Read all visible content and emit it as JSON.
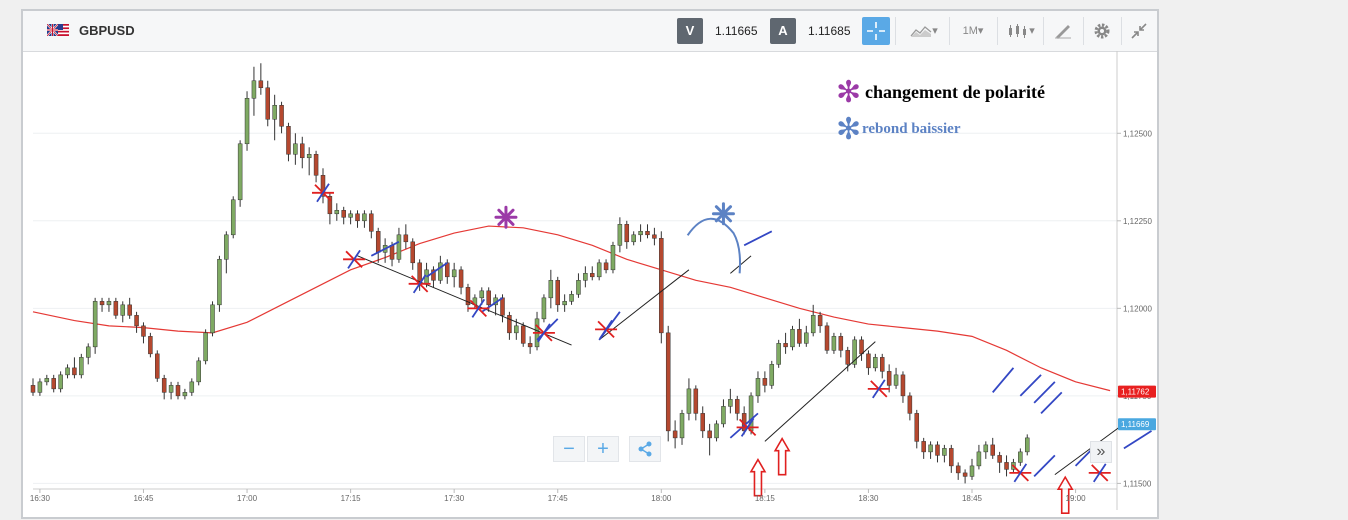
{
  "toolbar": {
    "symbol": "GBPUSD",
    "sell_label": "V",
    "sell_price": "1.11665",
    "buy_label": "A",
    "buy_price": "1.11685",
    "timeframe": "1M",
    "dropdown_caret": "▾",
    "zoom_out": "−",
    "zoom_in": "+",
    "scroll_glyph": "»"
  },
  "legend": {
    "items": [
      {
        "symbol": "✻",
        "label": "changement de polarité",
        "color": "#9b3aa7"
      },
      {
        "symbol": "✻",
        "label": "rebond baissier",
        "color": "#5c82c4"
      }
    ]
  },
  "chart_data": {
    "type": "candlestick",
    "x_ticks": [
      "16:30",
      "16:45",
      "17:00",
      "17:15",
      "17:30",
      "17:45",
      "18:00",
      "18:15",
      "18:30",
      "18:45",
      "19:00"
    ],
    "x_tick_minutes": [
      990,
      1005,
      1020,
      1035,
      1050,
      1065,
      1080,
      1095,
      1110,
      1125,
      1140
    ],
    "x_range_minutes": [
      989,
      1140
    ],
    "y_ticks": [
      "1,12500",
      "1,12250",
      "1,12000",
      "1,11750",
      "1,11500"
    ],
    "y_tick_values": [
      1.125,
      1.1225,
      1.12,
      1.1175,
      1.115
    ],
    "ylim": [
      1.11484,
      1.12735
    ],
    "current_ma_tag": {
      "label": "1,11762",
      "value": 1.11762,
      "color": "#e82020"
    },
    "current_price_tag": {
      "label": "1,11669",
      "value": 1.11669,
      "color": "#4aa8e0"
    },
    "up_color": "#7faa63",
    "down_color": "#b5482f",
    "ma_color": "#e53935",
    "candles": [
      [
        1.1178,
        1.118,
        1.1175,
        1.1176
      ],
      [
        1.1176,
        1.118,
        1.1175,
        1.1179
      ],
      [
        1.1179,
        1.1181,
        1.1178,
        1.118
      ],
      [
        1.118,
        1.1181,
        1.1176,
        1.1177
      ],
      [
        1.1177,
        1.1182,
        1.1176,
        1.1181
      ],
      [
        1.1181,
        1.1184,
        1.118,
        1.1183
      ],
      [
        1.1183,
        1.1186,
        1.118,
        1.1181
      ],
      [
        1.1181,
        1.1187,
        1.118,
        1.1186
      ],
      [
        1.1186,
        1.119,
        1.1184,
        1.1189
      ],
      [
        1.1189,
        1.1203,
        1.1187,
        1.1202
      ],
      [
        1.1202,
        1.1203,
        1.1199,
        1.1201
      ],
      [
        1.1201,
        1.1203,
        1.1199,
        1.1202
      ],
      [
        1.1202,
        1.1203,
        1.1197,
        1.1198
      ],
      [
        1.1198,
        1.1202,
        1.1196,
        1.1201
      ],
      [
        1.1201,
        1.1203,
        1.1197,
        1.1198
      ],
      [
        1.1198,
        1.1199,
        1.1193,
        1.1195
      ],
      [
        1.1195,
        1.1196,
        1.119,
        1.1192
      ],
      [
        1.1192,
        1.1193,
        1.1186,
        1.1187
      ],
      [
        1.1187,
        1.1188,
        1.1179,
        1.118
      ],
      [
        1.118,
        1.1181,
        1.1174,
        1.1176
      ],
      [
        1.1176,
        1.1179,
        1.1174,
        1.1178
      ],
      [
        1.1178,
        1.1179,
        1.1174,
        1.1175
      ],
      [
        1.1175,
        1.1177,
        1.1174,
        1.1176
      ],
      [
        1.1176,
        1.118,
        1.1175,
        1.1179
      ],
      [
        1.1179,
        1.1186,
        1.1178,
        1.1185
      ],
      [
        1.1185,
        1.1194,
        1.1184,
        1.1193
      ],
      [
        1.1193,
        1.1202,
        1.1192,
        1.1201
      ],
      [
        1.1201,
        1.1215,
        1.1199,
        1.1214
      ],
      [
        1.1214,
        1.1222,
        1.121,
        1.1221
      ],
      [
        1.1221,
        1.1232,
        1.122,
        1.1231
      ],
      [
        1.1231,
        1.1248,
        1.1229,
        1.1247
      ],
      [
        1.1247,
        1.1262,
        1.1245,
        1.126
      ],
      [
        1.126,
        1.1269,
        1.1255,
        1.1265
      ],
      [
        1.1265,
        1.127,
        1.1261,
        1.1263
      ],
      [
        1.1263,
        1.1265,
        1.1252,
        1.1254
      ],
      [
        1.1254,
        1.1261,
        1.1248,
        1.1258
      ],
      [
        1.1258,
        1.1259,
        1.125,
        1.1252
      ],
      [
        1.1252,
        1.1253,
        1.1242,
        1.1244
      ],
      [
        1.1244,
        1.125,
        1.1241,
        1.1247
      ],
      [
        1.1247,
        1.1249,
        1.124,
        1.1243
      ],
      [
        1.1243,
        1.1246,
        1.1238,
        1.1244
      ],
      [
        1.1244,
        1.1245,
        1.1236,
        1.1238
      ],
      [
        1.1238,
        1.124,
        1.123,
        1.1232
      ],
      [
        1.1232,
        1.1233,
        1.1224,
        1.1227
      ],
      [
        1.1227,
        1.123,
        1.1225,
        1.1228
      ],
      [
        1.1228,
        1.1229,
        1.1224,
        1.1226
      ],
      [
        1.1226,
        1.1228,
        1.1224,
        1.1227
      ],
      [
        1.1227,
        1.1228,
        1.1223,
        1.1225
      ],
      [
        1.1225,
        1.1228,
        1.1223,
        1.1227
      ],
      [
        1.1227,
        1.1228,
        1.122,
        1.1222
      ],
      [
        1.1222,
        1.1223,
        1.1213,
        1.1216
      ],
      [
        1.1216,
        1.122,
        1.1213,
        1.1218
      ],
      [
        1.1218,
        1.1219,
        1.1212,
        1.1214
      ],
      [
        1.1214,
        1.1223,
        1.1213,
        1.1221
      ],
      [
        1.1221,
        1.1224,
        1.1217,
        1.1219
      ],
      [
        1.1219,
        1.122,
        1.1211,
        1.1213
      ],
      [
        1.1213,
        1.1214,
        1.1205,
        1.1207
      ],
      [
        1.1207,
        1.1213,
        1.1206,
        1.1211
      ],
      [
        1.1211,
        1.1212,
        1.1206,
        1.1208
      ],
      [
        1.1208,
        1.1215,
        1.1207,
        1.1213
      ],
      [
        1.1213,
        1.1214,
        1.1207,
        1.1209
      ],
      [
        1.1209,
        1.1213,
        1.1206,
        1.1211
      ],
      [
        1.1211,
        1.1212,
        1.1204,
        1.1206
      ],
      [
        1.1206,
        1.1207,
        1.1199,
        1.1201
      ],
      [
        1.1201,
        1.1204,
        1.12,
        1.1203
      ],
      [
        1.1203,
        1.1206,
        1.1201,
        1.1205
      ],
      [
        1.1205,
        1.1206,
        1.1199,
        1.1201
      ],
      [
        1.1201,
        1.1204,
        1.1198,
        1.1203
      ],
      [
        1.1203,
        1.1204,
        1.1196,
        1.1198
      ],
      [
        1.1198,
        1.1199,
        1.1191,
        1.1193
      ],
      [
        1.1193,
        1.1197,
        1.1191,
        1.1195
      ],
      [
        1.1195,
        1.1196,
        1.1189,
        1.119
      ],
      [
        1.119,
        1.1192,
        1.1187,
        1.1189
      ],
      [
        1.1189,
        1.1199,
        1.1188,
        1.1197
      ],
      [
        1.1197,
        1.1204,
        1.1196,
        1.1203
      ],
      [
        1.1203,
        1.1211,
        1.12,
        1.1208
      ],
      [
        1.1208,
        1.1209,
        1.1199,
        1.1201
      ],
      [
        1.1201,
        1.1204,
        1.1199,
        1.1202
      ],
      [
        1.1202,
        1.1205,
        1.1201,
        1.1204
      ],
      [
        1.1204,
        1.121,
        1.1203,
        1.1208
      ],
      [
        1.1208,
        1.1212,
        1.1206,
        1.121
      ],
      [
        1.121,
        1.1212,
        1.1208,
        1.1209
      ],
      [
        1.1209,
        1.1214,
        1.1208,
        1.1213
      ],
      [
        1.1213,
        1.1214,
        1.121,
        1.1211
      ],
      [
        1.1211,
        1.1219,
        1.121,
        1.1218
      ],
      [
        1.1218,
        1.1226,
        1.1216,
        1.1224
      ],
      [
        1.1224,
        1.1225,
        1.1217,
        1.1219
      ],
      [
        1.1219,
        1.1222,
        1.1218,
        1.1221
      ],
      [
        1.1221,
        1.1224,
        1.1219,
        1.1222
      ],
      [
        1.1222,
        1.1224,
        1.122,
        1.1221
      ],
      [
        1.1221,
        1.1223,
        1.1218,
        1.122
      ],
      [
        1.122,
        1.1222,
        1.119,
        1.1193
      ],
      [
        1.1193,
        1.1195,
        1.1162,
        1.1165
      ],
      [
        1.1165,
        1.1168,
        1.116,
        1.1163
      ],
      [
        1.1163,
        1.1171,
        1.1161,
        1.117
      ],
      [
        1.117,
        1.118,
        1.1168,
        1.1177
      ],
      [
        1.1177,
        1.1178,
        1.1168,
        1.117
      ],
      [
        1.117,
        1.1172,
        1.1163,
        1.1165
      ],
      [
        1.1165,
        1.1167,
        1.1158,
        1.1163
      ],
      [
        1.1163,
        1.1168,
        1.1162,
        1.1167
      ],
      [
        1.1167,
        1.1174,
        1.1166,
        1.1172
      ],
      [
        1.1172,
        1.1177,
        1.117,
        1.1174
      ],
      [
        1.1174,
        1.1175,
        1.1168,
        1.117
      ],
      [
        1.117,
        1.1172,
        1.1164,
        1.1165
      ],
      [
        1.1165,
        1.1176,
        1.1164,
        1.1175
      ],
      [
        1.1175,
        1.1182,
        1.1173,
        1.118
      ],
      [
        1.118,
        1.1182,
        1.1176,
        1.1178
      ],
      [
        1.1178,
        1.1185,
        1.1177,
        1.1184
      ],
      [
        1.1184,
        1.1191,
        1.1183,
        1.119
      ],
      [
        1.119,
        1.1193,
        1.1187,
        1.1189
      ],
      [
        1.1189,
        1.1195,
        1.1188,
        1.1194
      ],
      [
        1.1194,
        1.1197,
        1.1189,
        1.119
      ],
      [
        1.119,
        1.1195,
        1.1189,
        1.1193
      ],
      [
        1.1193,
        1.1201,
        1.1192,
        1.1198
      ],
      [
        1.1198,
        1.1199,
        1.1193,
        1.1195
      ],
      [
        1.1195,
        1.1196,
        1.1187,
        1.1188
      ],
      [
        1.1188,
        1.1193,
        1.1187,
        1.1192
      ],
      [
        1.1192,
        1.1193,
        1.1186,
        1.1188
      ],
      [
        1.1188,
        1.1189,
        1.1182,
        1.1184
      ],
      [
        1.1184,
        1.1192,
        1.1183,
        1.1191
      ],
      [
        1.1191,
        1.1192,
        1.1185,
        1.1187
      ],
      [
        1.1187,
        1.1188,
        1.1181,
        1.1183
      ],
      [
        1.1183,
        1.1187,
        1.1182,
        1.1186
      ],
      [
        1.1186,
        1.1187,
        1.118,
        1.1182
      ],
      [
        1.1182,
        1.1184,
        1.1176,
        1.1178
      ],
      [
        1.1178,
        1.1183,
        1.1177,
        1.1181
      ],
      [
        1.1181,
        1.1182,
        1.1173,
        1.1175
      ],
      [
        1.1175,
        1.1176,
        1.1168,
        1.117
      ],
      [
        1.117,
        1.1171,
        1.116,
        1.1162
      ],
      [
        1.1162,
        1.1163,
        1.1157,
        1.1159
      ],
      [
        1.1159,
        1.1162,
        1.1157,
        1.1161
      ],
      [
        1.1161,
        1.1162,
        1.1156,
        1.1158
      ],
      [
        1.1158,
        1.1161,
        1.1156,
        1.116
      ],
      [
        1.116,
        1.1161,
        1.1153,
        1.1155
      ],
      [
        1.1155,
        1.1156,
        1.1151,
        1.1153
      ],
      [
        1.1153,
        1.1154,
        1.115,
        1.1152
      ],
      [
        1.1152,
        1.1157,
        1.1151,
        1.1155
      ],
      [
        1.1155,
        1.1161,
        1.1154,
        1.1159
      ],
      [
        1.1159,
        1.1162,
        1.1157,
        1.1161
      ],
      [
        1.1161,
        1.1163,
        1.1157,
        1.1158
      ],
      [
        1.1158,
        1.1159,
        1.1153,
        1.1156
      ],
      [
        1.1156,
        1.1158,
        1.1152,
        1.1154
      ],
      [
        1.1154,
        1.1157,
        1.1153,
        1.1156
      ],
      [
        1.1156,
        1.116,
        1.1155,
        1.1159
      ],
      [
        1.1159,
        1.1164,
        1.1158,
        1.1163
      ]
    ],
    "moving_average": [
      [
        989,
        1.1199
      ],
      [
        995,
        1.11965
      ],
      [
        1000,
        1.1195
      ],
      [
        1005,
        1.11945
      ],
      [
        1010,
        1.11935
      ],
      [
        1015,
        1.1193
      ],
      [
        1020,
        1.1196
      ],
      [
        1025,
        1.1201
      ],
      [
        1030,
        1.1206
      ],
      [
        1035,
        1.1211
      ],
      [
        1040,
        1.12145
      ],
      [
        1045,
        1.12185
      ],
      [
        1050,
        1.12215
      ],
      [
        1055,
        1.12235
      ],
      [
        1060,
        1.1223
      ],
      [
        1065,
        1.1221
      ],
      [
        1070,
        1.1218
      ],
      [
        1075,
        1.1214
      ],
      [
        1080,
        1.1211
      ],
      [
        1085,
        1.1208
      ],
      [
        1090,
        1.1206
      ],
      [
        1095,
        1.1203
      ],
      [
        1100,
        1.12
      ],
      [
        1105,
        1.11975
      ],
      [
        1110,
        1.11955
      ],
      [
        1115,
        1.11945
      ],
      [
        1120,
        1.11935
      ],
      [
        1125,
        1.1192
      ],
      [
        1130,
        1.1188
      ],
      [
        1135,
        1.1183
      ],
      [
        1140,
        1.1179
      ],
      [
        1145,
        1.11765
      ]
    ],
    "trendlines": [
      {
        "color": "#222",
        "points": [
          [
            1036,
            1.1215
          ],
          [
            1067,
            1.11895
          ]
        ]
      },
      {
        "color": "#222",
        "points": [
          [
            1071,
            1.1191
          ],
          [
            1084,
            1.1211
          ]
        ]
      },
      {
        "color": "#222",
        "points": [
          [
            1090,
            1.121
          ],
          [
            1093,
            1.1215
          ]
        ]
      },
      {
        "color": "#222",
        "points": [
          [
            1095,
            1.1162
          ],
          [
            1111,
            1.11905
          ]
        ]
      },
      {
        "color": "#222",
        "points": [
          [
            1137,
            1.11525
          ],
          [
            1147,
            1.1167
          ]
        ]
      }
    ],
    "marks": [
      {
        "x": 1031,
        "y": 1.1233,
        "type": "red-cross"
      },
      {
        "x": 1035.5,
        "y": 1.1214,
        "type": "red-cross"
      },
      {
        "x": 1045,
        "y": 1.1207,
        "type": "red-cross"
      },
      {
        "x": 1053.5,
        "y": 1.12,
        "type": "red-cross"
      },
      {
        "x": 1063,
        "y": 1.1193,
        "type": "red-cross"
      },
      {
        "x": 1072,
        "y": 1.1194,
        "type": "red-cross"
      },
      {
        "x": 1092.5,
        "y": 1.1166,
        "type": "red-cross"
      },
      {
        "x": 1111.5,
        "y": 1.1177,
        "type": "red-cross"
      },
      {
        "x": 1132,
        "y": 1.1153,
        "type": "red-cross"
      },
      {
        "x": 1143.5,
        "y": 1.1153,
        "type": "red-cross"
      }
    ],
    "blue_strokes": [
      {
        "points": [
          [
            1038,
            1.1215
          ],
          [
            1042,
            1.1219
          ]
        ]
      },
      {
        "points": [
          [
            1046,
            1.1209
          ],
          [
            1049,
            1.1213
          ]
        ]
      },
      {
        "points": [
          [
            1054,
            1.1199
          ],
          [
            1057,
            1.1203
          ]
        ]
      },
      {
        "points": [
          [
            1062,
            1.1191
          ],
          [
            1065,
            1.1197
          ]
        ]
      },
      {
        "points": [
          [
            1071,
            1.1191
          ],
          [
            1074,
            1.1199
          ]
        ]
      },
      {
        "points": [
          [
            1090,
            1.1163
          ],
          [
            1094,
            1.117
          ]
        ]
      },
      {
        "points": [
          [
            1128,
            1.1176
          ],
          [
            1131,
            1.1183
          ]
        ]
      },
      {
        "points": [
          [
            1132,
            1.1175
          ],
          [
            1135,
            1.1181
          ]
        ]
      },
      {
        "points": [
          [
            1134,
            1.1173
          ],
          [
            1137,
            1.1179
          ]
        ]
      },
      {
        "points": [
          [
            1135,
            1.117
          ],
          [
            1138,
            1.1176
          ]
        ]
      },
      {
        "points": [
          [
            1134,
            1.1152
          ],
          [
            1137,
            1.1158
          ]
        ]
      },
      {
        "points": [
          [
            1140,
            1.1155
          ],
          [
            1143,
            1.1161
          ]
        ]
      },
      {
        "points": [
          [
            1147,
            1.116
          ],
          [
            1151,
            1.1165
          ]
        ]
      },
      {
        "points": [
          [
            1092,
            1.1218
          ],
          [
            1096,
            1.1222
          ]
        ]
      }
    ],
    "star_marks": [
      {
        "x": 1057.5,
        "y": 1.1226,
        "color": "#9b3aa7"
      },
      {
        "x": 1089,
        "y": 1.1227,
        "color": "#5c82c4"
      }
    ],
    "arc": {
      "center": [
        1087,
        1.1222
      ],
      "color": "#5c82c4"
    },
    "up_arrows": [
      {
        "x": 1094,
        "y": 1.11505
      },
      {
        "x": 1097.5,
        "y": 1.11565
      },
      {
        "x": 1138.5,
        "y": 1.11455
      }
    ]
  }
}
